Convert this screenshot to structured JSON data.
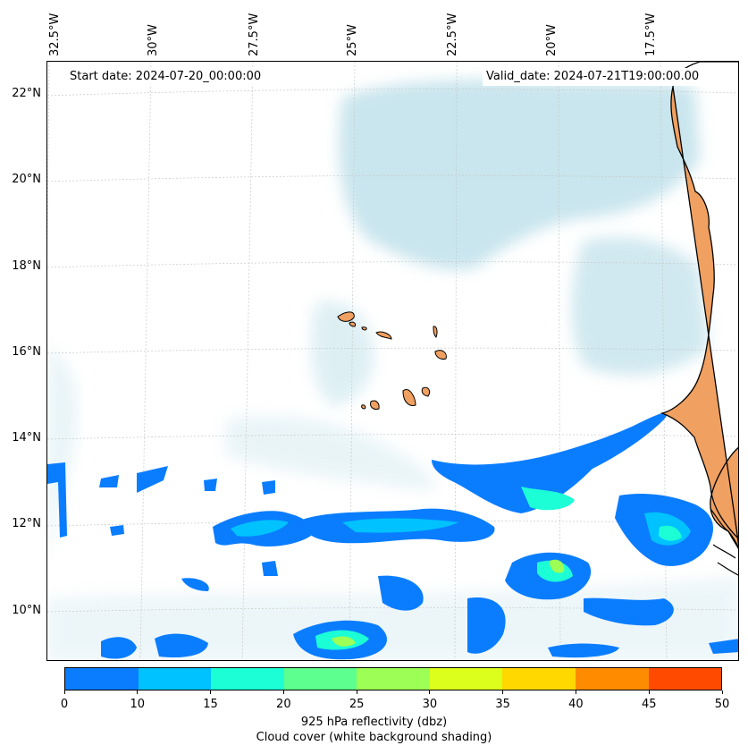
{
  "banner": {
    "start_date": "Start date: 2024-07-20_00:00:00",
    "valid_date": "Valid_date: 2024-07-21T19:00:00.00"
  },
  "lon_labels": [
    "32.5°W",
    "30°W",
    "27.5°W",
    "25°W",
    "22.5°W",
    "20°W",
    "17.5°W"
  ],
  "lat_labels": [
    "22°N",
    "20°N",
    "18°N",
    "16°N",
    "14°N",
    "12°N",
    "10°N"
  ],
  "colorbar": {
    "ticks": [
      "0",
      "10",
      "15",
      "20",
      "25",
      "30",
      "35",
      "40",
      "45",
      "50"
    ],
    "colors": [
      "#0a7dff",
      "#00c2ff",
      "#1cffd6",
      "#5dff8e",
      "#9dff55",
      "#dcff1c",
      "#ffd800",
      "#ff8c00",
      "#ff4a00"
    ],
    "title_line1": "925 hPa reflectivity (dbz)",
    "title_line2": "Cloud cover (white background shading)"
  },
  "colors": {
    "land": "#f0a060",
    "cloud": "#b8dde8",
    "coastline": "#000000",
    "gridline": "#c8c8c8"
  }
}
